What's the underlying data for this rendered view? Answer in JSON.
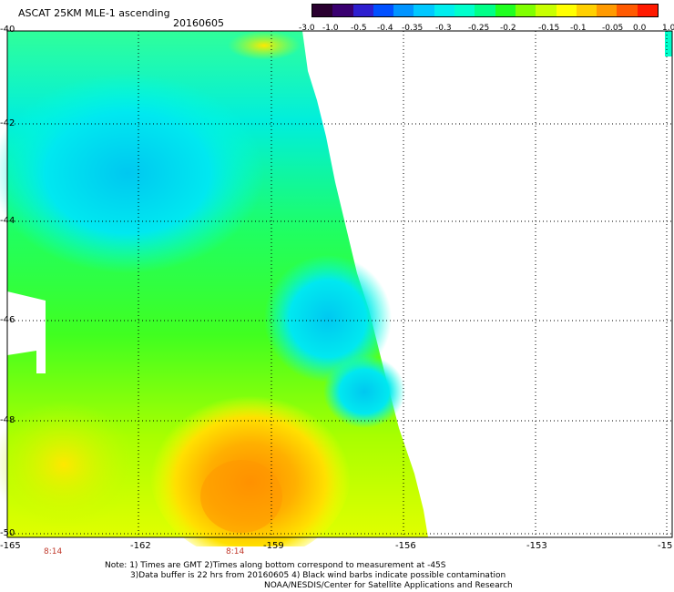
{
  "header": {
    "title": "ASCAT 25KM MLE-1 ascending",
    "date": "20160605"
  },
  "colorbar": {
    "colors": [
      "#2a0030",
      "#3a0070",
      "#2e1fcf",
      "#0050ff",
      "#0094ff",
      "#00c8ff",
      "#00eeee",
      "#00ffcc",
      "#00ff88",
      "#20ff20",
      "#80ff00",
      "#c8ff00",
      "#ffff00",
      "#ffd000",
      "#ff9a00",
      "#ff5a00",
      "#ff1a00"
    ],
    "labels": [
      "-3.0",
      "-1.0",
      "-0.5",
      "-0.4",
      "-0.35",
      "-0.3",
      "-0.25",
      "-0.2",
      "-0.15",
      "-0.1",
      "-0.05",
      "0.0",
      "1.0"
    ]
  },
  "axes": {
    "lon_ticks": [
      "-165",
      "-162",
      "-159",
      "-156",
      "-153",
      "-15"
    ],
    "lat_ticks": [
      "-40",
      "-42",
      "-44",
      "-46",
      "-48",
      "-50"
    ],
    "times": [
      "8:14",
      "8:14"
    ]
  },
  "notes": {
    "line1": "Note: 1) Times are GMT 2)Times along bottom correspond to measurement at -45S",
    "line2": "3)Data buffer is 22 hrs from 20160605 4) Black wind barbs indicate possible contamination",
    "line3": "NOAA/NESDIS/Center for Satellite Applications and Research"
  },
  "map": {
    "data_range": [
      -3.0,
      1.0
    ]
  }
}
